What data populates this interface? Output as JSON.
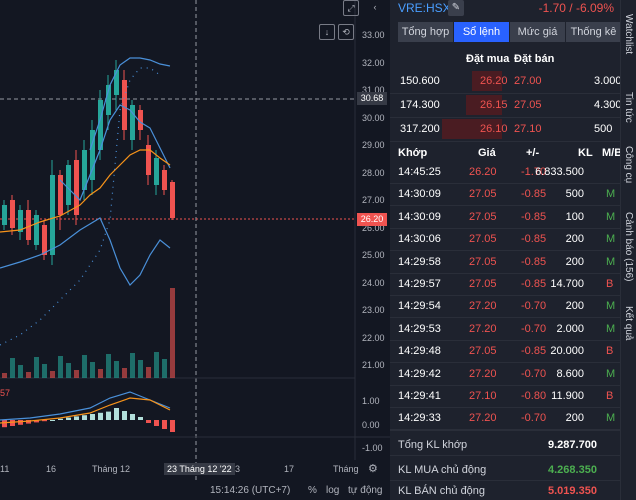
{
  "header": {
    "symbol": "VRE:HSX",
    "edit_icon": "pencil-icon",
    "change": "-1.70 / -6.09%"
  },
  "tabs": [
    {
      "label": "Tổng hợp",
      "active": false
    },
    {
      "label": "Sổ lệnh",
      "active": true
    },
    {
      "label": "Mức giá",
      "active": false
    },
    {
      "label": "Thống kê",
      "active": false
    }
  ],
  "orderbook": {
    "bid_label": "Đặt mua",
    "ask_label": "Đặt bán",
    "rows": [
      {
        "bid_vol": "150.600",
        "bid": "26.20",
        "ask": "27.00",
        "ask_vol": "3.000"
      },
      {
        "bid_vol": "174.300",
        "bid": "26.15",
        "ask": "27.05",
        "ask_vol": "4.300"
      },
      {
        "bid_vol": "317.200",
        "bid": "26.10",
        "ask": "27.10",
        "ask_vol": "500"
      }
    ]
  },
  "trades": {
    "headers": {
      "time": "Khớp",
      "price": "Giá",
      "change": "+/-",
      "vol": "KL",
      "side": "M/B"
    },
    "rows": [
      {
        "time": "14:45:25",
        "price": "26.20",
        "change": "-1.70",
        "vol": "6.833.500",
        "side": ""
      },
      {
        "time": "14:30:09",
        "price": "27.05",
        "change": "-0.85",
        "vol": "500",
        "side": "M"
      },
      {
        "time": "14:30:09",
        "price": "27.05",
        "change": "-0.85",
        "vol": "100",
        "side": "M"
      },
      {
        "time": "14:30:06",
        "price": "27.05",
        "change": "-0.85",
        "vol": "200",
        "side": "M"
      },
      {
        "time": "14:29:58",
        "price": "27.05",
        "change": "-0.85",
        "vol": "200",
        "side": "M"
      },
      {
        "time": "14:29:57",
        "price": "27.05",
        "change": "-0.85",
        "vol": "14.700",
        "side": "B"
      },
      {
        "time": "14:29:54",
        "price": "27.20",
        "change": "-0.70",
        "vol": "200",
        "side": "M"
      },
      {
        "time": "14:29:53",
        "price": "27.20",
        "change": "-0.70",
        "vol": "2.000",
        "side": "M"
      },
      {
        "time": "14:29:48",
        "price": "27.05",
        "change": "-0.85",
        "vol": "20.000",
        "side": "B"
      },
      {
        "time": "14:29:42",
        "price": "27.20",
        "change": "-0.70",
        "vol": "8.600",
        "side": "M"
      },
      {
        "time": "14:29:41",
        "price": "27.10",
        "change": "-0.80",
        "vol": "11.900",
        "side": "B"
      },
      {
        "time": "14:29:33",
        "price": "27.20",
        "change": "-0.70",
        "vol": "200",
        "side": "M"
      }
    ]
  },
  "summary": {
    "total_label": "Tổng KL khớp",
    "total_value": "9.287.700",
    "buy_label": "KL MUA chủ động",
    "buy_value": "4.268.350",
    "sell_label": "KL BÁN chủ động",
    "sell_value": "5.019.350"
  },
  "side_tabs": [
    "Watchlist",
    "Tin tức",
    "Công cụ",
    "Cảnh báo (156)",
    "Kết quả"
  ],
  "chart": {
    "price_axis": [
      "33.00",
      "32.00",
      "31.00",
      "30.00",
      "29.00",
      "28.00",
      "27.00",
      "26.00",
      "25.00",
      "24.00",
      "23.00",
      "22.00",
      "21.00"
    ],
    "crosshair_price": "30.68",
    "last_price": "26.20",
    "macd_axis": [
      "1.00",
      "0.00",
      "-1.00"
    ],
    "macd_label": "57",
    "time_labels": [
      "11",
      "16",
      "Tháng 12",
      "23",
      "17",
      "Tháng"
    ],
    "crosshair_time": "23 Tháng 12 '22",
    "clock": "15:14:26 (UTC+7)",
    "footer": {
      "pct": "%",
      "log": "log",
      "auto": "tự động"
    },
    "icons": [
      "fullscreen-icon",
      "back-icon",
      "down-arrow-icon",
      "reset-icon",
      "settings-icon"
    ]
  }
}
